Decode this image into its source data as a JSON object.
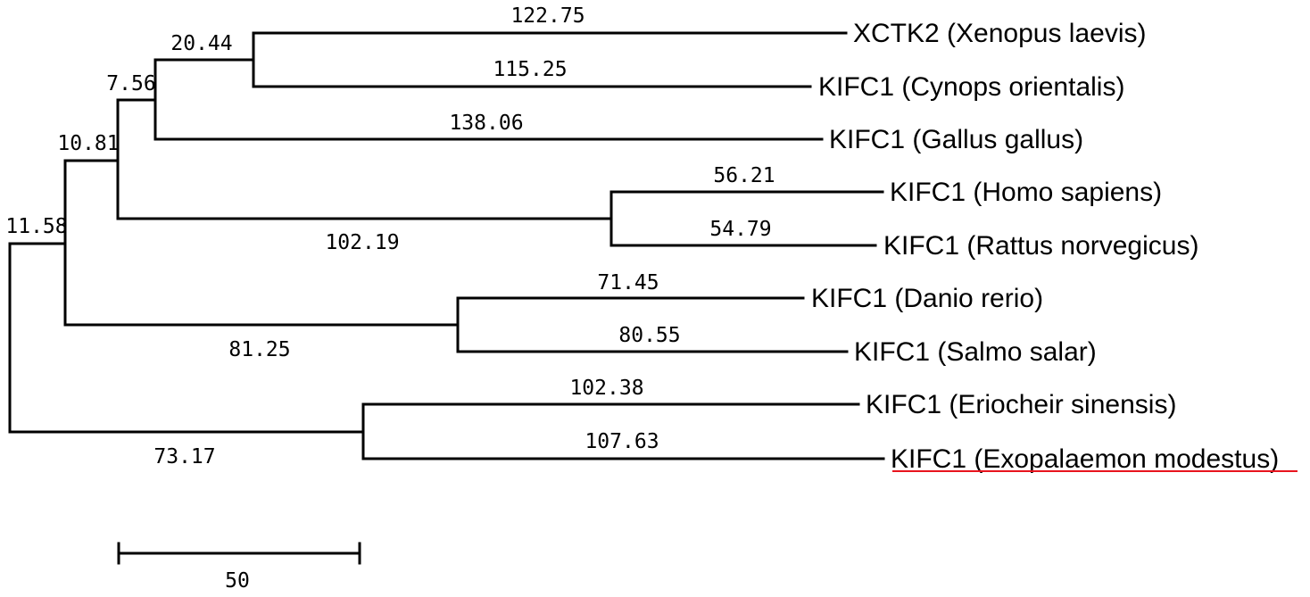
{
  "taxa": [
    {
      "label": "XCTK2 (Xenopus laevis)"
    },
    {
      "label": "KIFC1 (Cynops orientalis)"
    },
    {
      "label": "KIFC1 (Gallus gallus)"
    },
    {
      "label": "KIFC1 (Homo sapiens)"
    },
    {
      "label": "KIFC1 (Rattus norvegicus)"
    },
    {
      "label": "KIFC1 (Danio rerio)"
    },
    {
      "label": "KIFC1 (Salmo salar)"
    },
    {
      "label": "KIFC1 (Eriocheir sinensis)"
    },
    {
      "label": "KIFC1 (Exopalaemon modestus)",
      "highlight_color": "#e8141e"
    }
  ],
  "branch_lengths": {
    "xenopus": "122.75",
    "cynops": "115.25",
    "gallus": "138.06",
    "homo": "56.21",
    "rattus": "54.79",
    "danio": "71.45",
    "salmo": "80.55",
    "eriocheir": "102.38",
    "exopalaemon": "107.63",
    "xen_cyn_clade": "20.44",
    "bird_amphib_clade": "7.56",
    "tetrapod_clade": "10.81",
    "vertebrate_clade": "11.58",
    "mammal_clade": "102.19",
    "fish_clade": "81.25",
    "crustacean_clade": "73.17"
  },
  "scale_bar": {
    "label": "50"
  }
}
